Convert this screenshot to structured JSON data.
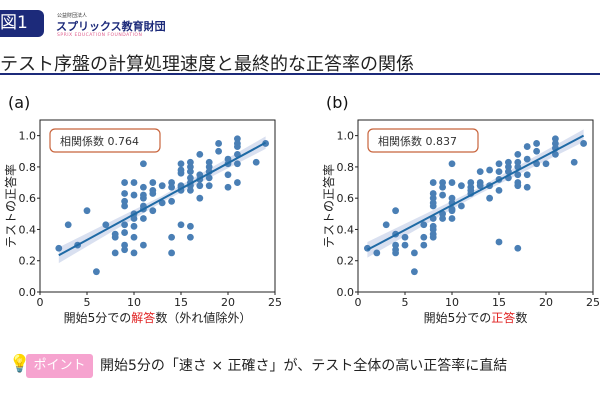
{
  "header": {
    "figure_label": "図1",
    "org_small": "公益財団法人",
    "org_name": "スプリックス教育財団",
    "org_sub": "SPRIX EDUCATION FOUNDATION",
    "title": "テスト序盤の計算処理速度と最終的な正答率の関係"
  },
  "footer": {
    "icon": "lightbulb-icon",
    "badge": "ポイント",
    "text": "開始5分の「速さ × 正確さ」が、テスト全体の高い正答率に直結",
    "badge_color": "#f6a3cf"
  },
  "colors": {
    "points": "#4a7fb5",
    "line": "#1f6aa5",
    "band": "#c9d3ea",
    "highlight": "#e02020",
    "annotation_border": "#c8643c",
    "accent": "#1c2a7a"
  },
  "chart_data": [
    {
      "type": "scatter",
      "panel": "(a)",
      "annotation": "相関係数 0.764",
      "xlabel_parts": [
        "開始5分での",
        "解答",
        "数（外れ値除外）"
      ],
      "ylabel": "テストの正答率",
      "xlim": [
        0,
        25
      ],
      "ylim": [
        0,
        1.1
      ],
      "xticks": [
        "0",
        "5",
        "10",
        "15",
        "20",
        "25"
      ],
      "yticks": [
        "0.0",
        "0.2",
        "0.4",
        "0.6",
        "0.8",
        "1.0"
      ],
      "regression": [
        [
          2,
          0.235
        ],
        [
          24,
          0.955
        ]
      ],
      "points": [
        [
          2,
          0.28
        ],
        [
          3,
          0.43
        ],
        [
          4,
          0.3
        ],
        [
          5,
          0.52
        ],
        [
          6,
          0.13
        ],
        [
          7,
          0.43
        ],
        [
          8,
          0.37
        ],
        [
          8,
          0.35
        ],
        [
          8,
          0.25
        ],
        [
          9,
          0.7
        ],
        [
          9,
          0.63
        ],
        [
          9,
          0.58
        ],
        [
          9,
          0.55
        ],
        [
          9,
          0.43
        ],
        [
          9,
          0.38
        ],
        [
          9,
          0.3
        ],
        [
          9,
          0.27
        ],
        [
          10,
          0.7
        ],
        [
          10,
          0.62
        ],
        [
          10,
          0.5
        ],
        [
          10,
          0.47
        ],
        [
          10,
          0.42
        ],
        [
          10,
          0.35
        ],
        [
          10,
          0.25
        ],
        [
          11,
          0.82
        ],
        [
          11,
          0.67
        ],
        [
          11,
          0.62
        ],
        [
          11,
          0.6
        ],
        [
          11,
          0.55
        ],
        [
          11,
          0.53
        ],
        [
          11,
          0.47
        ],
        [
          11,
          0.3
        ],
        [
          12,
          0.7
        ],
        [
          12,
          0.65
        ],
        [
          12,
          0.63
        ],
        [
          12,
          0.52
        ],
        [
          13,
          0.68
        ],
        [
          13,
          0.57
        ],
        [
          14,
          0.7
        ],
        [
          14,
          0.67
        ],
        [
          14,
          0.58
        ],
        [
          14,
          0.35
        ],
        [
          14,
          0.25
        ],
        [
          15,
          0.82
        ],
        [
          15,
          0.78
        ],
        [
          15,
          0.76
        ],
        [
          15,
          0.68
        ],
        [
          15,
          0.67
        ],
        [
          15,
          0.65
        ],
        [
          15,
          0.43
        ],
        [
          16,
          0.83
        ],
        [
          16,
          0.8
        ],
        [
          16,
          0.77
        ],
        [
          16,
          0.73
        ],
        [
          16,
          0.7
        ],
        [
          16,
          0.68
        ],
        [
          16,
          0.65
        ],
        [
          16,
          0.42
        ],
        [
          16,
          0.35
        ],
        [
          17,
          0.88
        ],
        [
          17,
          0.75
        ],
        [
          17,
          0.72
        ],
        [
          17,
          0.68
        ],
        [
          17,
          0.6
        ],
        [
          18,
          0.83
        ],
        [
          18,
          0.8
        ],
        [
          18,
          0.77
        ],
        [
          18,
          0.73
        ],
        [
          18,
          0.68
        ],
        [
          19,
          0.95
        ],
        [
          19,
          0.9
        ],
        [
          20,
          0.85
        ],
        [
          20,
          0.82
        ],
        [
          20,
          0.75
        ],
        [
          20,
          0.67
        ],
        [
          21,
          0.98
        ],
        [
          21,
          0.95
        ],
        [
          21,
          0.93
        ],
        [
          21,
          0.88
        ],
        [
          21,
          0.82
        ],
        [
          21,
          0.7
        ],
        [
          23,
          0.83
        ],
        [
          24,
          0.95
        ]
      ]
    },
    {
      "type": "scatter",
      "panel": "(b)",
      "annotation": "相関係数 0.837",
      "xlabel_parts": [
        "開始5分での",
        "正答",
        "数"
      ],
      "ylabel": "テストの正答率",
      "xlim": [
        0,
        25
      ],
      "ylim": [
        0,
        1.1
      ],
      "xticks": [
        "0",
        "5",
        "10",
        "15",
        "20",
        "25"
      ],
      "yticks": [
        "0.0",
        "0.2",
        "0.4",
        "0.6",
        "0.8",
        "1.0"
      ],
      "regression": [
        [
          1,
          0.27
        ],
        [
          24,
          1.0
        ]
      ],
      "points": [
        [
          1,
          0.28
        ],
        [
          2,
          0.25
        ],
        [
          3,
          0.43
        ],
        [
          4,
          0.52
        ],
        [
          4,
          0.37
        ],
        [
          4,
          0.3
        ],
        [
          4,
          0.27
        ],
        [
          4,
          0.25
        ],
        [
          5,
          0.35
        ],
        [
          5,
          0.3
        ],
        [
          6,
          0.25
        ],
        [
          6,
          0.13
        ],
        [
          7,
          0.43
        ],
        [
          7,
          0.35
        ],
        [
          7,
          0.3
        ],
        [
          8,
          0.7
        ],
        [
          8,
          0.63
        ],
        [
          8,
          0.6
        ],
        [
          8,
          0.57
        ],
        [
          8,
          0.55
        ],
        [
          8,
          0.47
        ],
        [
          8,
          0.42
        ],
        [
          8,
          0.4
        ],
        [
          8,
          0.37
        ],
        [
          8,
          0.35
        ],
        [
          9,
          0.7
        ],
        [
          9,
          0.67
        ],
        [
          9,
          0.62
        ],
        [
          9,
          0.5
        ],
        [
          9,
          0.47
        ],
        [
          10,
          0.82
        ],
        [
          10,
          0.7
        ],
        [
          10,
          0.6
        ],
        [
          10,
          0.57
        ],
        [
          10,
          0.53
        ],
        [
          10,
          0.52
        ],
        [
          10,
          0.47
        ],
        [
          11,
          0.68
        ],
        [
          11,
          0.55
        ],
        [
          12,
          0.7
        ],
        [
          12,
          0.67
        ],
        [
          12,
          0.65
        ],
        [
          12,
          0.63
        ],
        [
          13,
          0.77
        ],
        [
          13,
          0.7
        ],
        [
          13,
          0.68
        ],
        [
          14,
          0.78
        ],
        [
          14,
          0.68
        ],
        [
          14,
          0.6
        ],
        [
          15,
          0.82
        ],
        [
          15,
          0.77
        ],
        [
          15,
          0.72
        ],
        [
          15,
          0.65
        ],
        [
          15,
          0.32
        ],
        [
          16,
          0.83
        ],
        [
          16,
          0.8
        ],
        [
          16,
          0.77
        ],
        [
          16,
          0.73
        ],
        [
          17,
          0.88
        ],
        [
          17,
          0.83
        ],
        [
          17,
          0.8
        ],
        [
          17,
          0.75
        ],
        [
          17,
          0.7
        ],
        [
          17,
          0.68
        ],
        [
          17,
          0.28
        ],
        [
          18,
          0.93
        ],
        [
          18,
          0.85
        ],
        [
          18,
          0.75
        ],
        [
          18,
          0.67
        ],
        [
          19,
          0.95
        ],
        [
          19,
          0.9
        ],
        [
          19,
          0.82
        ],
        [
          20,
          0.82
        ],
        [
          21,
          0.98
        ],
        [
          21,
          0.95
        ],
        [
          21,
          0.92
        ],
        [
          21,
          0.88
        ],
        [
          23,
          0.83
        ],
        [
          24,
          0.95
        ]
      ]
    }
  ]
}
